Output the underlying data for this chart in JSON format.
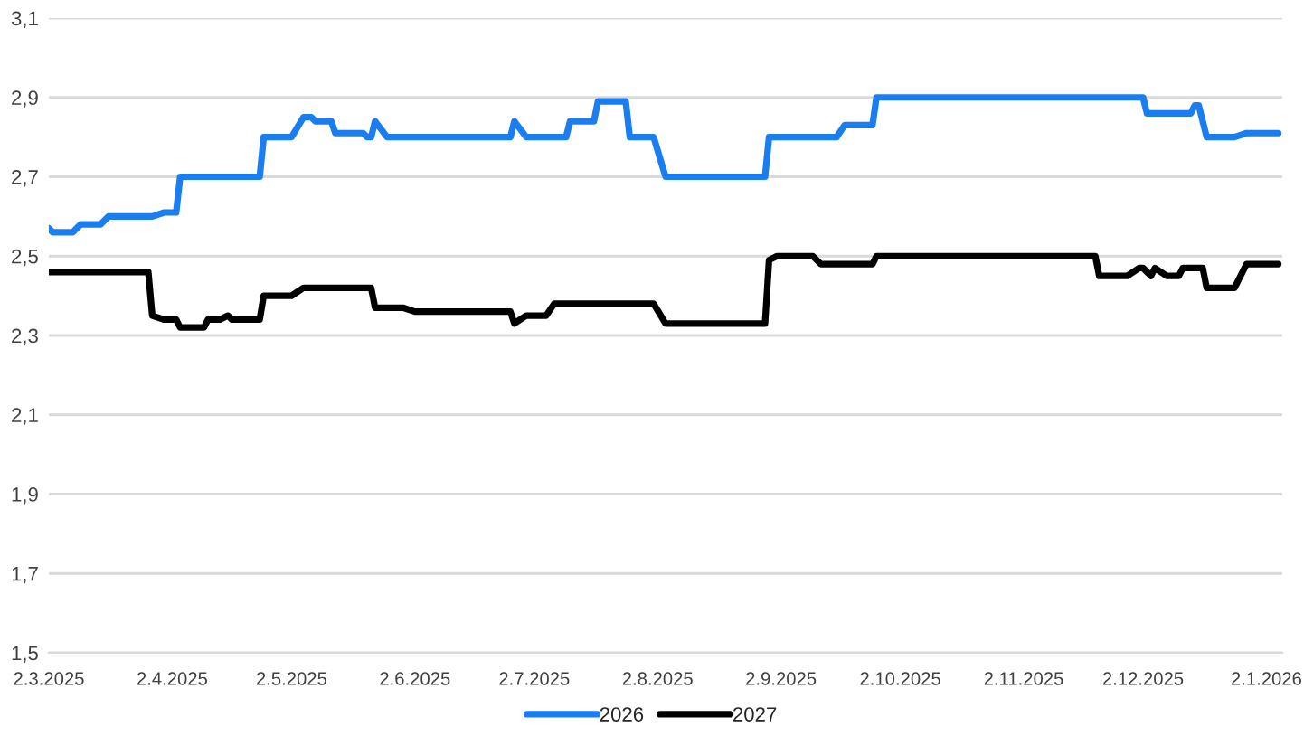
{
  "chart_data": {
    "type": "line",
    "xlim": [
      "2025-03-02",
      "2026-01-06"
    ],
    "ylim": [
      1.5,
      3.1
    ],
    "xticks": [
      {
        "value": "2025-03-02",
        "label": "2.3.2025"
      },
      {
        "value": "2025-04-02",
        "label": "2.4.2025"
      },
      {
        "value": "2025-05-02",
        "label": "2.5.2025"
      },
      {
        "value": "2025-06-02",
        "label": "2.6.2025"
      },
      {
        "value": "2025-07-02",
        "label": "2.7.2025"
      },
      {
        "value": "2025-08-02",
        "label": "2.8.2025"
      },
      {
        "value": "2025-09-02",
        "label": "2.9.2025"
      },
      {
        "value": "2025-10-02",
        "label": "2.10.2025"
      },
      {
        "value": "2025-11-02",
        "label": "2.11.2025"
      },
      {
        "value": "2025-12-02",
        "label": "2.12.2025"
      },
      {
        "value": "2026-01-02",
        "label": "2.1.2026"
      }
    ],
    "yticks": [
      {
        "value": 1.5,
        "label": "1,5"
      },
      {
        "value": 1.7,
        "label": "1,7"
      },
      {
        "value": 1.9,
        "label": "1,9"
      },
      {
        "value": 2.1,
        "label": "2,1"
      },
      {
        "value": 2.3,
        "label": "2,3"
      },
      {
        "value": 2.5,
        "label": "2,5"
      },
      {
        "value": 2.7,
        "label": "2,7"
      },
      {
        "value": 2.9,
        "label": "2,9"
      },
      {
        "value": 3.1,
        "label": "3,1"
      }
    ],
    "grid": "y",
    "legend": "bottom",
    "marker": "none",
    "line_style": "solid",
    "series": [
      {
        "name": "2026",
        "color": "#1a7ef0",
        "x": [
          "2025-03-02",
          "2025-03-03",
          "2025-03-08",
          "2025-03-10",
          "2025-03-15",
          "2025-03-17",
          "2025-03-28",
          "2025-03-31",
          "2025-04-03",
          "2025-04-04",
          "2025-04-24",
          "2025-04-25",
          "2025-05-02",
          "2025-05-05",
          "2025-05-07",
          "2025-05-08",
          "2025-05-12",
          "2025-05-13",
          "2025-05-20",
          "2025-05-21",
          "2025-05-22",
          "2025-05-23",
          "2025-05-26",
          "2025-06-26",
          "2025-06-27",
          "2025-06-30",
          "2025-07-10",
          "2025-07-11",
          "2025-07-17",
          "2025-07-18",
          "2025-07-25",
          "2025-07-26",
          "2025-08-01",
          "2025-08-04",
          "2025-08-29",
          "2025-08-30",
          "2025-09-16",
          "2025-09-18",
          "2025-09-25",
          "2025-09-26",
          "2025-12-02",
          "2025-12-03",
          "2025-12-14",
          "2025-12-15",
          "2025-12-16",
          "2025-12-18",
          "2025-12-25",
          "2025-12-28",
          "2026-01-05"
        ],
        "values": [
          2.57,
          2.56,
          2.56,
          2.58,
          2.58,
          2.6,
          2.6,
          2.61,
          2.61,
          2.7,
          2.7,
          2.8,
          2.8,
          2.85,
          2.85,
          2.84,
          2.84,
          2.81,
          2.81,
          2.8,
          2.8,
          2.84,
          2.8,
          2.8,
          2.84,
          2.8,
          2.8,
          2.84,
          2.84,
          2.89,
          2.89,
          2.8,
          2.8,
          2.7,
          2.7,
          2.8,
          2.8,
          2.83,
          2.83,
          2.9,
          2.9,
          2.86,
          2.86,
          2.88,
          2.88,
          2.8,
          2.8,
          2.81,
          2.81
        ]
      },
      {
        "name": "2027",
        "color": "#000000",
        "x": [
          "2025-03-02",
          "2025-03-27",
          "2025-03-28",
          "2025-03-31",
          "2025-04-03",
          "2025-04-04",
          "2025-04-10",
          "2025-04-11",
          "2025-04-14",
          "2025-04-16",
          "2025-04-17",
          "2025-04-24",
          "2025-04-25",
          "2025-05-02",
          "2025-05-05",
          "2025-05-22",
          "2025-05-23",
          "2025-05-30",
          "2025-06-02",
          "2025-06-26",
          "2025-06-27",
          "2025-06-30",
          "2025-07-05",
          "2025-07-07",
          "2025-08-01",
          "2025-08-04",
          "2025-08-29",
          "2025-08-30",
          "2025-09-01",
          "2025-09-10",
          "2025-09-12",
          "2025-09-25",
          "2025-09-26",
          "2025-11-20",
          "2025-11-21",
          "2025-11-28",
          "2025-12-01",
          "2025-12-02",
          "2025-12-04",
          "2025-12-05",
          "2025-12-08",
          "2025-12-11",
          "2025-12-12",
          "2025-12-17",
          "2025-12-18",
          "2025-12-25",
          "2025-12-28",
          "2026-01-05"
        ],
        "values": [
          2.46,
          2.46,
          2.35,
          2.34,
          2.34,
          2.32,
          2.32,
          2.34,
          2.34,
          2.35,
          2.34,
          2.34,
          2.4,
          2.4,
          2.42,
          2.42,
          2.37,
          2.37,
          2.36,
          2.36,
          2.33,
          2.35,
          2.35,
          2.38,
          2.38,
          2.33,
          2.33,
          2.49,
          2.5,
          2.5,
          2.48,
          2.48,
          2.5,
          2.5,
          2.45,
          2.45,
          2.47,
          2.47,
          2.45,
          2.47,
          2.45,
          2.45,
          2.47,
          2.47,
          2.42,
          2.42,
          2.48,
          2.48
        ]
      }
    ]
  }
}
